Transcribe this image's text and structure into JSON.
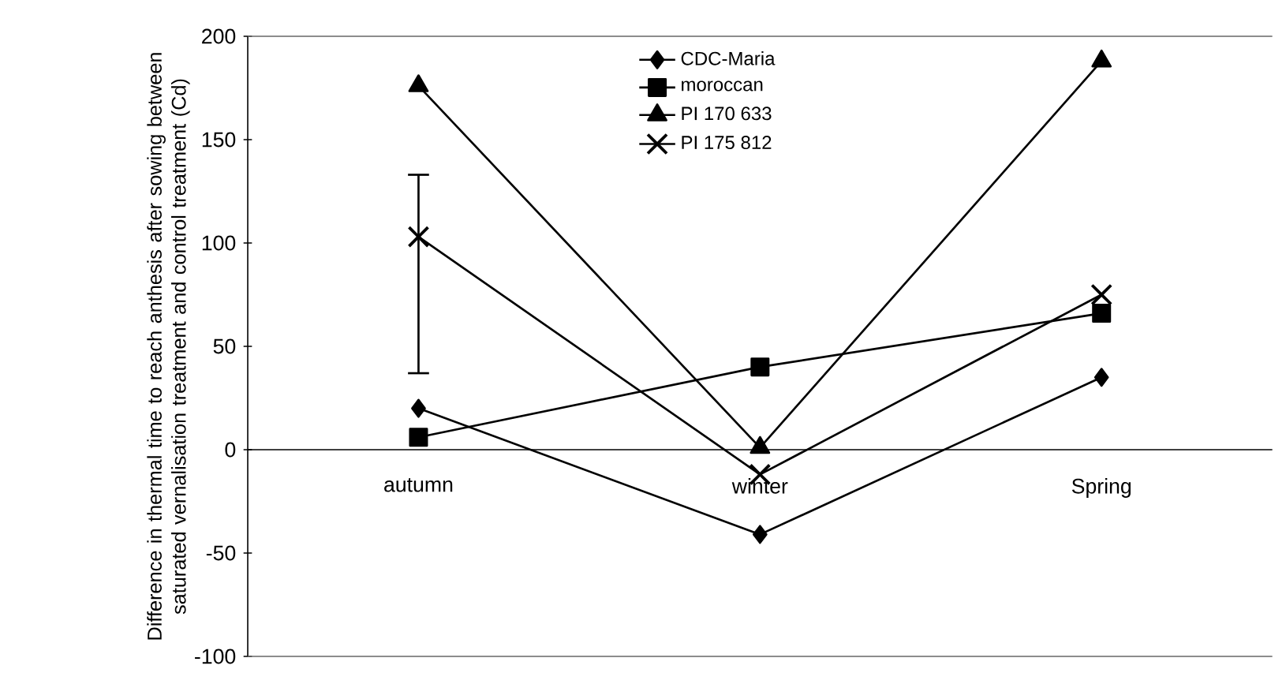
{
  "chart_data": {
    "type": "line",
    "ylabel": "Difference in thermal time to reach anthesis after sowing between saturated vernalisation treatment and control treatment (Cd)",
    "categories": [
      "autumn",
      "winter",
      "Spring"
    ],
    "series": [
      {
        "name": "CDC-Maria",
        "color": "#000000",
        "marker": "diamond",
        "values": [
          20,
          -41,
          35
        ]
      },
      {
        "name": "moroccan",
        "color": "#000000",
        "marker": "square",
        "values": [
          6,
          40,
          66
        ]
      },
      {
        "name": "PI 170 633",
        "color": "#000000",
        "marker": "triangle",
        "values": [
          176,
          1,
          188
        ]
      },
      {
        "name": "PI 175 812",
        "color": "#000000",
        "marker": "cross",
        "values": [
          103,
          -12,
          75
        ],
        "errors": [
          [
            37,
            133
          ],
          null,
          null
        ]
      }
    ],
    "ylim": [
      -100,
      200
    ],
    "yticks": [
      -100,
      -50,
      0,
      50,
      100,
      150,
      200
    ],
    "grid": false,
    "legend": "top",
    "line_style": "solid"
  }
}
